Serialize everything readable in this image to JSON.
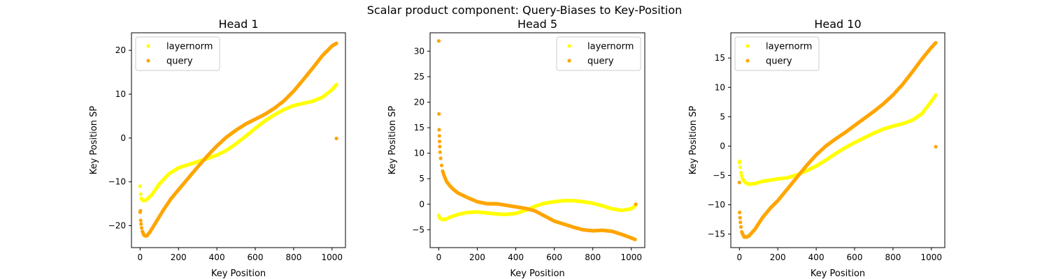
{
  "figure": {
    "title": "Scalar product component: Query-Biases to Key-Position"
  },
  "colors": {
    "layernorm": "#ffff00",
    "query": "#ffa500"
  },
  "chart_data": [
    {
      "type": "scatter",
      "title": "Head 1",
      "xlabel": "Key Position",
      "ylabel": "Key Position SP",
      "xlim": [
        -45,
        1070
      ],
      "ylim": [
        -25,
        24
      ],
      "xticks": [
        0,
        200,
        400,
        600,
        800,
        1000
      ],
      "yticks": [
        -20,
        -10,
        0,
        10,
        20
      ],
      "legend_position": "top-left",
      "series": [
        {
          "name": "layernorm",
          "color": "#ffff00",
          "points": [
            [
              0,
              -11
            ],
            [
              3,
              -12.8
            ],
            [
              6,
              -13.8
            ],
            [
              15,
              -14.3
            ],
            [
              30,
              -14.2
            ],
            [
              60,
              -13
            ],
            [
              100,
              -10.5
            ],
            [
              150,
              -8.2
            ],
            [
              200,
              -6.8
            ],
            [
              250,
              -6.1
            ],
            [
              300,
              -5.4
            ],
            [
              350,
              -4.7
            ],
            [
              400,
              -3.9
            ],
            [
              450,
              -2.8
            ],
            [
              500,
              -1.3
            ],
            [
              550,
              0.4
            ],
            [
              600,
              2.2
            ],
            [
              650,
              3.9
            ],
            [
              700,
              5.3
            ],
            [
              750,
              6.5
            ],
            [
              800,
              7.4
            ],
            [
              850,
              7.9
            ],
            [
              900,
              8.4
            ],
            [
              950,
              9.3
            ],
            [
              1000,
              11
            ],
            [
              1023,
              12.2
            ]
          ]
        },
        {
          "name": "query",
          "color": "#ffa500",
          "points": [
            [
              0,
              -16.9
            ],
            [
              2,
              -16.6
            ],
            [
              3,
              -18.8
            ],
            [
              5,
              -19.6
            ],
            [
              8,
              -20.5
            ],
            [
              12,
              -21.3
            ],
            [
              18,
              -22
            ],
            [
              25,
              -22.3
            ],
            [
              35,
              -22.3
            ],
            [
              50,
              -21.5
            ],
            [
              80,
              -19.4
            ],
            [
              120,
              -16.5
            ],
            [
              160,
              -13.9
            ],
            [
              200,
              -11.8
            ],
            [
              250,
              -9.2
            ],
            [
              300,
              -6.6
            ],
            [
              350,
              -4.1
            ],
            [
              400,
              -1.8
            ],
            [
              450,
              0.2
            ],
            [
              500,
              1.8
            ],
            [
              550,
              3.2
            ],
            [
              600,
              4.3
            ],
            [
              650,
              5.4
            ],
            [
              700,
              6.8
            ],
            [
              750,
              8.5
            ],
            [
              800,
              10.7
            ],
            [
              850,
              13.3
            ],
            [
              900,
              16
            ],
            [
              950,
              18.8
            ],
            [
              1000,
              21
            ],
            [
              1023,
              21.6
            ],
            [
              1023,
              -0.1
            ]
          ]
        }
      ]
    },
    {
      "type": "scatter",
      "title": "Head 5",
      "xlabel": "Key Position",
      "ylabel": "Key Position SP",
      "xlim": [
        -45,
        1070
      ],
      "ylim": [
        -8.5,
        33.6
      ],
      "xticks": [
        0,
        200,
        400,
        600,
        800,
        1000
      ],
      "yticks": [
        -5,
        0,
        5,
        10,
        15,
        20,
        25,
        30
      ],
      "legend_position": "top-right",
      "series": [
        {
          "name": "layernorm",
          "color": "#ffff00",
          "points": [
            [
              0,
              -2.2
            ],
            [
              3,
              -2.5
            ],
            [
              8,
              -2.8
            ],
            [
              20,
              -3
            ],
            [
              40,
              -2.9
            ],
            [
              60,
              -2.5
            ],
            [
              100,
              -2
            ],
            [
              150,
              -1.6
            ],
            [
              200,
              -1.5
            ],
            [
              250,
              -1.7
            ],
            [
              300,
              -1.9
            ],
            [
              350,
              -2
            ],
            [
              400,
              -1.8
            ],
            [
              450,
              -1.2
            ],
            [
              500,
              -0.4
            ],
            [
              550,
              0.2
            ],
            [
              600,
              0.5
            ],
            [
              650,
              0.7
            ],
            [
              700,
              0.7
            ],
            [
              750,
              0.5
            ],
            [
              800,
              0.2
            ],
            [
              850,
              -0.3
            ],
            [
              900,
              -0.9
            ],
            [
              950,
              -1.2
            ],
            [
              1000,
              -0.9
            ],
            [
              1020,
              -0.3
            ]
          ]
        },
        {
          "name": "query",
          "color": "#ffa500",
          "points": [
            [
              0,
              32
            ],
            [
              1,
              17.7
            ],
            [
              2,
              14.6
            ],
            [
              3,
              13.4
            ],
            [
              4,
              12.3
            ],
            [
              5,
              11.3
            ],
            [
              7,
              10.2
            ],
            [
              10,
              9
            ],
            [
              15,
              7.6
            ],
            [
              20,
              6.5
            ],
            [
              30,
              5.4
            ],
            [
              40,
              4.5
            ],
            [
              60,
              3.5
            ],
            [
              80,
              2.8
            ],
            [
              100,
              2.2
            ],
            [
              150,
              1.3
            ],
            [
              200,
              0.5
            ],
            [
              250,
              0.1
            ],
            [
              300,
              0.1
            ],
            [
              350,
              -0.2
            ],
            [
              400,
              -0.5
            ],
            [
              450,
              -0.8
            ],
            [
              500,
              -1.3
            ],
            [
              550,
              -2.3
            ],
            [
              600,
              -3.3
            ],
            [
              650,
              -3.9
            ],
            [
              700,
              -4.5
            ],
            [
              750,
              -5
            ],
            [
              800,
              -5.2
            ],
            [
              850,
              -5.1
            ],
            [
              900,
              -5.3
            ],
            [
              950,
              -5.9
            ],
            [
              1000,
              -6.6
            ],
            [
              1020,
              -6.9
            ],
            [
              1023,
              0
            ]
          ]
        }
      ]
    },
    {
      "type": "scatter",
      "title": "Head 10",
      "xlabel": "Key Position",
      "ylabel": "Key Position SP",
      "xlim": [
        -45,
        1070
      ],
      "ylim": [
        -17.3,
        19.3
      ],
      "xticks": [
        0,
        200,
        400,
        600,
        800,
        1000
      ],
      "yticks": [
        -15,
        -10,
        -5,
        0,
        5,
        10,
        15
      ],
      "legend_position": "top-left",
      "series": [
        {
          "name": "layernorm",
          "color": "#ffff00",
          "points": [
            [
              0,
              -2.8
            ],
            [
              2,
              -2.6
            ],
            [
              4,
              -3.6
            ],
            [
              8,
              -4.5
            ],
            [
              15,
              -5.5
            ],
            [
              30,
              -6.2
            ],
            [
              50,
              -6.5
            ],
            [
              80,
              -6.4
            ],
            [
              120,
              -6
            ],
            [
              160,
              -5.8
            ],
            [
              200,
              -5.6
            ],
            [
              250,
              -5.4
            ],
            [
              300,
              -4.9
            ],
            [
              350,
              -4.2
            ],
            [
              400,
              -3.4
            ],
            [
              450,
              -2.4
            ],
            [
              500,
              -1.3
            ],
            [
              550,
              -0.3
            ],
            [
              600,
              0.6
            ],
            [
              650,
              1.4
            ],
            [
              700,
              2.2
            ],
            [
              750,
              2.9
            ],
            [
              800,
              3.4
            ],
            [
              850,
              3.8
            ],
            [
              900,
              4.4
            ],
            [
              950,
              5.5
            ],
            [
              1000,
              7.6
            ],
            [
              1023,
              8.7
            ]
          ]
        },
        {
          "name": "query",
          "color": "#ffa500",
          "points": [
            [
              0,
              -6.2
            ],
            [
              1,
              -11.3
            ],
            [
              3,
              -12.2
            ],
            [
              5,
              -13
            ],
            [
              8,
              -13.8
            ],
            [
              12,
              -14.6
            ],
            [
              18,
              -15.1
            ],
            [
              25,
              -15.5
            ],
            [
              35,
              -15.5
            ],
            [
              50,
              -15.3
            ],
            [
              80,
              -14.2
            ],
            [
              120,
              -12.2
            ],
            [
              160,
              -10.6
            ],
            [
              200,
              -9.3
            ],
            [
              250,
              -7.3
            ],
            [
              300,
              -5.3
            ],
            [
              350,
              -3.3
            ],
            [
              400,
              -1.5
            ],
            [
              450,
              0
            ],
            [
              500,
              1.2
            ],
            [
              550,
              2.3
            ],
            [
              600,
              3.5
            ],
            [
              650,
              4.7
            ],
            [
              700,
              5.9
            ],
            [
              750,
              7.2
            ],
            [
              800,
              8.7
            ],
            [
              850,
              10.5
            ],
            [
              900,
              12.6
            ],
            [
              950,
              14.8
            ],
            [
              1000,
              16.8
            ],
            [
              1023,
              17.6
            ],
            [
              1023,
              -0.1
            ]
          ]
        }
      ]
    }
  ]
}
